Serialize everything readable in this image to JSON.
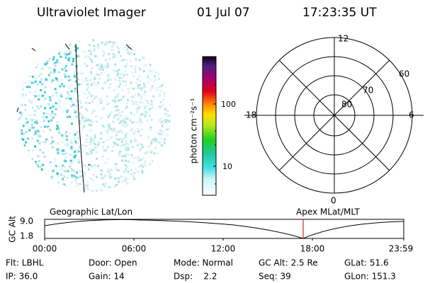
{
  "header": {
    "title": "Ultraviolet Imager",
    "date": "01 Jul 07",
    "time": "17:23:35 UT"
  },
  "colorbar": {
    "label": "photon cm⁻²s⁻¹",
    "ticks": [
      "100",
      "10"
    ]
  },
  "polar": {
    "labels": [
      "12",
      "0",
      "18",
      "6",
      "60",
      "70",
      "80"
    ]
  },
  "timeline": {
    "left_label": "Geographic Lat/Lon",
    "right_label": "Apex MLat/MLT",
    "axis_label": "GC Alt",
    "yticks": [
      "9.0",
      "1.8"
    ],
    "xticks": [
      "00:00",
      "06:00",
      "12:00",
      "18:00",
      "23:59"
    ]
  },
  "info": {
    "rows": [
      [
        "Flt: LBHL",
        "Door: Open",
        "Mode: Normal",
        "GC Alt: 2.5 Re",
        "GLat: 51.6"
      ],
      [
        "IP: 36.0",
        "Gain: 14",
        "Dsp:    2.2",
        "Seq: 39",
        "GLon: 151.3"
      ]
    ]
  }
}
